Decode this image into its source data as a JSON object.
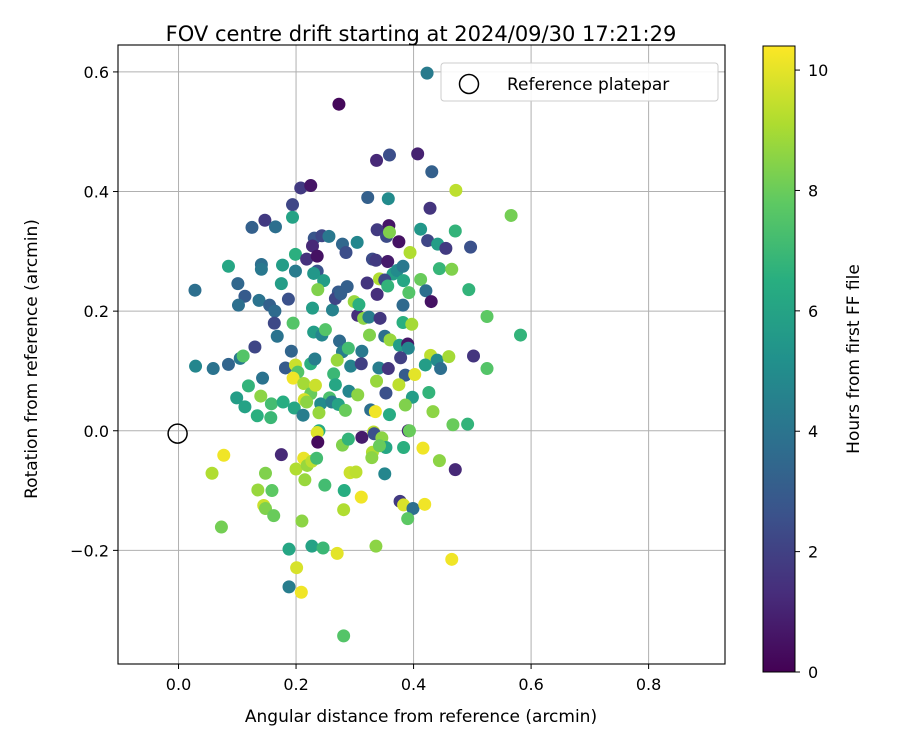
{
  "chart_data": {
    "type": "scatter",
    "title": "FOV centre drift starting at 2024/09/30 17:21:29",
    "xlabel": "Angular distance from reference (arcmin)",
    "ylabel": "Rotation from reference (arcmin)",
    "xlim": [
      -0.103,
      0.93
    ],
    "ylim": [
      -0.39,
      0.645
    ],
    "xticks": [
      0.0,
      0.2,
      0.4,
      0.6,
      0.8
    ],
    "xtick_labels": [
      "0.0",
      "0.2",
      "0.4",
      "0.6",
      "0.8"
    ],
    "yticks": [
      -0.2,
      0.0,
      0.2,
      0.4,
      0.6
    ],
    "ytick_labels": [
      "−0.2",
      "0.0",
      "0.2",
      "0.4",
      "0.6"
    ],
    "grid": true,
    "legend": {
      "position": "top-right",
      "entries": [
        "Reference platepar"
      ]
    },
    "reference": {
      "x": 0.0,
      "y": 0.0,
      "label": "Reference platepar"
    },
    "colorbar": {
      "label": "Hours from first FF file",
      "colormap": "viridis",
      "range": [
        0,
        10.4
      ],
      "ticks": [
        0,
        2,
        4,
        6,
        8,
        10
      ],
      "tick_labels": [
        "0",
        "2",
        "4",
        "6",
        "8",
        "10"
      ]
    },
    "points": [
      [
        0.423,
        0.598,
        4.3
      ],
      [
        0.273,
        0.546,
        0.2
      ],
      [
        0.337,
        0.452,
        1.2
      ],
      [
        0.359,
        0.461,
        2.5
      ],
      [
        0.407,
        0.463,
        1.0
      ],
      [
        0.431,
        0.433,
        3.2
      ],
      [
        0.208,
        0.406,
        1.8
      ],
      [
        0.225,
        0.41,
        0.6
      ],
      [
        0.194,
        0.378,
        2.2
      ],
      [
        0.472,
        0.402,
        9.4
      ],
      [
        0.428,
        0.372,
        1.6
      ],
      [
        0.566,
        0.36,
        8.2
      ],
      [
        0.147,
        0.352,
        1.8
      ],
      [
        0.194,
        0.357,
        6.0
      ],
      [
        0.322,
        0.39,
        3.2
      ],
      [
        0.357,
        0.388,
        5.0
      ],
      [
        0.358,
        0.343,
        0.6
      ],
      [
        0.412,
        0.337,
        5.5
      ],
      [
        0.471,
        0.334,
        6.8
      ],
      [
        0.125,
        0.34,
        3.2
      ],
      [
        0.165,
        0.341,
        3.8
      ],
      [
        0.231,
        0.322,
        2.8
      ],
      [
        0.244,
        0.326,
        2.2
      ],
      [
        0.228,
        0.309,
        1.2
      ],
      [
        0.256,
        0.325,
        4.2
      ],
      [
        0.279,
        0.312,
        3.5
      ],
      [
        0.285,
        0.298,
        2.5
      ],
      [
        0.304,
        0.315,
        4.8
      ],
      [
        0.338,
        0.336,
        1.8
      ],
      [
        0.354,
        0.325,
        2.4
      ],
      [
        0.359,
        0.332,
        8.4
      ],
      [
        0.375,
        0.316,
        0.5
      ],
      [
        0.424,
        0.318,
        2.2
      ],
      [
        0.441,
        0.312,
        5.8
      ],
      [
        0.455,
        0.305,
        1.8
      ],
      [
        0.497,
        0.307,
        2.6
      ],
      [
        0.085,
        0.275,
        6.2
      ],
      [
        0.141,
        0.278,
        3.8
      ],
      [
        0.141,
        0.27,
        4.2
      ],
      [
        0.177,
        0.277,
        5.8
      ],
      [
        0.199,
        0.295,
        6.6
      ],
      [
        0.218,
        0.287,
        1.5
      ],
      [
        0.236,
        0.292,
        0.5
      ],
      [
        0.199,
        0.267,
        4.3
      ],
      [
        0.236,
        0.267,
        2.7
      ],
      [
        0.33,
        0.287,
        2.4
      ],
      [
        0.336,
        0.285,
        1.8
      ],
      [
        0.356,
        0.283,
        0.8
      ],
      [
        0.365,
        0.262,
        5.8
      ],
      [
        0.372,
        0.268,
        5.0
      ],
      [
        0.382,
        0.275,
        4.2
      ],
      [
        0.394,
        0.298,
        9.2
      ],
      [
        0.444,
        0.271,
        6.9
      ],
      [
        0.465,
        0.27,
        8.4
      ],
      [
        0.101,
        0.246,
        3.5
      ],
      [
        0.113,
        0.225,
        3.0
      ],
      [
        0.137,
        0.218,
        4.0
      ],
      [
        0.155,
        0.21,
        3.2
      ],
      [
        0.164,
        0.2,
        3.6
      ],
      [
        0.175,
        0.246,
        5.8
      ],
      [
        0.187,
        0.22,
        2.6
      ],
      [
        0.23,
        0.263,
        5.5
      ],
      [
        0.247,
        0.251,
        5.8
      ],
      [
        0.272,
        0.232,
        3.0
      ],
      [
        0.287,
        0.241,
        3.2
      ],
      [
        0.321,
        0.247,
        1.6
      ],
      [
        0.342,
        0.254,
        9.2
      ],
      [
        0.351,
        0.252,
        2.3
      ],
      [
        0.356,
        0.242,
        6.8
      ],
      [
        0.383,
        0.251,
        6.2
      ],
      [
        0.392,
        0.231,
        7.6
      ],
      [
        0.412,
        0.253,
        8.0
      ],
      [
        0.421,
        0.234,
        3.8
      ],
      [
        0.43,
        0.216,
        0.5
      ],
      [
        0.494,
        0.236,
        6.8
      ],
      [
        0.028,
        0.235,
        3.8
      ],
      [
        0.102,
        0.21,
        3.8
      ],
      [
        0.163,
        0.18,
        2.3
      ],
      [
        0.195,
        0.18,
        7.6
      ],
      [
        0.228,
        0.205,
        5.8
      ],
      [
        0.237,
        0.236,
        8.4
      ],
      [
        0.262,
        0.202,
        4.6
      ],
      [
        0.267,
        0.221,
        2.2
      ],
      [
        0.276,
        0.229,
        3.2
      ],
      [
        0.299,
        0.216,
        8.8
      ],
      [
        0.305,
        0.193,
        1.4
      ],
      [
        0.307,
        0.211,
        6.6
      ],
      [
        0.315,
        0.188,
        8.6
      ],
      [
        0.324,
        0.19,
        4.4
      ],
      [
        0.338,
        0.228,
        1.4
      ],
      [
        0.343,
        0.188,
        1.7
      ],
      [
        0.382,
        0.181,
        6.6
      ],
      [
        0.382,
        0.21,
        3.6
      ],
      [
        0.397,
        0.178,
        9.0
      ],
      [
        0.525,
        0.191,
        7.8
      ],
      [
        0.582,
        0.16,
        6.8
      ],
      [
        0.13,
        0.14,
        2.2
      ],
      [
        0.168,
        0.158,
        4.0
      ],
      [
        0.192,
        0.133,
        3.4
      ],
      [
        0.23,
        0.165,
        5.8
      ],
      [
        0.244,
        0.16,
        4.8
      ],
      [
        0.25,
        0.169,
        7.6
      ],
      [
        0.274,
        0.15,
        3.6
      ],
      [
        0.279,
        0.132,
        4.4
      ],
      [
        0.289,
        0.138,
        7.2
      ],
      [
        0.312,
        0.133,
        4.2
      ],
      [
        0.325,
        0.16,
        8.4
      ],
      [
        0.351,
        0.158,
        3.8
      ],
      [
        0.36,
        0.152,
        8.8
      ],
      [
        0.376,
        0.143,
        5.8
      ],
      [
        0.39,
        0.145,
        0.7
      ],
      [
        0.391,
        0.138,
        4.8
      ],
      [
        0.429,
        0.126,
        9.4
      ],
      [
        0.44,
        0.118,
        5.0
      ],
      [
        0.46,
        0.124,
        9.0
      ],
      [
        0.502,
        0.125,
        1.6
      ],
      [
        0.029,
        0.108,
        4.8
      ],
      [
        0.059,
        0.104,
        4.0
      ],
      [
        0.085,
        0.111,
        3.4
      ],
      [
        0.105,
        0.121,
        4.2
      ],
      [
        0.11,
        0.125,
        7.6
      ],
      [
        0.143,
        0.088,
        4.0
      ],
      [
        0.182,
        0.105,
        3.0
      ],
      [
        0.199,
        0.11,
        9.6
      ],
      [
        0.203,
        0.098,
        7.6
      ],
      [
        0.225,
        0.112,
        6.6
      ],
      [
        0.232,
        0.12,
        4.4
      ],
      [
        0.264,
        0.095,
        7.0
      ],
      [
        0.27,
        0.118,
        8.8
      ],
      [
        0.293,
        0.108,
        4.6
      ],
      [
        0.311,
        0.112,
        2.0
      ],
      [
        0.341,
        0.105,
        4.4
      ],
      [
        0.357,
        0.104,
        1.6
      ],
      [
        0.378,
        0.122,
        2.0
      ],
      [
        0.386,
        0.093,
        3.0
      ],
      [
        0.402,
        0.094,
        10.0
      ],
      [
        0.42,
        0.11,
        5.8
      ],
      [
        0.446,
        0.104,
        3.8
      ],
      [
        0.525,
        0.104,
        7.6
      ],
      [
        0.119,
        0.075,
        6.8
      ],
      [
        0.14,
        0.058,
        8.6
      ],
      [
        0.158,
        0.045,
        7.2
      ],
      [
        0.178,
        0.048,
        6.5
      ],
      [
        0.195,
        0.088,
        10.2
      ],
      [
        0.213,
        0.079,
        9.0
      ],
      [
        0.225,
        0.062,
        8.0
      ],
      [
        0.233,
        0.076,
        9.6
      ],
      [
        0.257,
        0.055,
        7.4
      ],
      [
        0.267,
        0.077,
        6.2
      ],
      [
        0.29,
        0.066,
        4.8
      ],
      [
        0.305,
        0.06,
        8.6
      ],
      [
        0.337,
        0.083,
        8.8
      ],
      [
        0.353,
        0.063,
        2.6
      ],
      [
        0.375,
        0.077,
        9.4
      ],
      [
        0.398,
        0.056,
        5.8
      ],
      [
        0.426,
        0.064,
        6.8
      ],
      [
        0.099,
        0.055,
        5.8
      ],
      [
        0.113,
        0.04,
        6.0
      ],
      [
        0.134,
        0.025,
        6.6
      ],
      [
        0.157,
        0.022,
        7.0
      ],
      [
        0.197,
        0.038,
        6.2
      ],
      [
        0.214,
        0.052,
        9.8
      ],
      [
        0.218,
        0.048,
        8.6
      ],
      [
        0.242,
        0.045,
        5.0
      ],
      [
        0.261,
        0.048,
        4.4
      ],
      [
        0.272,
        0.044,
        6.0
      ],
      [
        0.284,
        0.034,
        8.0
      ],
      [
        0.327,
        0.035,
        3.8
      ],
      [
        0.335,
        0.032,
        10.2
      ],
      [
        0.359,
        0.027,
        6.4
      ],
      [
        0.386,
        0.043,
        8.4
      ],
      [
        0.433,
        0.032,
        8.6
      ],
      [
        0.467,
        0.01,
        8.0
      ],
      [
        0.492,
        0.011,
        6.8
      ],
      [
        0.212,
        0.026,
        4.4
      ],
      [
        0.239,
        0.03,
        8.8
      ],
      [
        0.239,
        0.0,
        6.4
      ],
      [
        0.236,
        -0.003,
        9.9
      ],
      [
        0.279,
        -0.024,
        8.4
      ],
      [
        0.289,
        -0.014,
        6.8
      ],
      [
        0.312,
        -0.011,
        0.8
      ],
      [
        0.332,
        -0.002,
        9.4
      ],
      [
        0.333,
        -0.005,
        2.6
      ],
      [
        0.346,
        -0.012,
        8.6
      ],
      [
        0.353,
        -0.028,
        6.2
      ],
      [
        0.383,
        -0.028,
        6.6
      ],
      [
        0.391,
        0.0,
        1.2
      ],
      [
        0.393,
        0.0,
        8.0
      ],
      [
        0.416,
        -0.029,
        10.2
      ],
      [
        0.077,
        -0.041,
        10.2
      ],
      [
        0.057,
        -0.071,
        9.2
      ],
      [
        0.175,
        -0.04,
        1.2
      ],
      [
        0.2,
        -0.064,
        9.2
      ],
      [
        0.213,
        -0.046,
        10.1
      ],
      [
        0.219,
        -0.058,
        8.8
      ],
      [
        0.227,
        -0.051,
        9.4
      ],
      [
        0.235,
        -0.046,
        7.2
      ],
      [
        0.237,
        -0.019,
        0.3
      ],
      [
        0.292,
        -0.07,
        9.6
      ],
      [
        0.302,
        -0.069,
        9.4
      ],
      [
        0.33,
        -0.036,
        9.2
      ],
      [
        0.329,
        -0.045,
        8.6
      ],
      [
        0.342,
        -0.025,
        8.0
      ],
      [
        0.351,
        -0.072,
        4.8
      ],
      [
        0.444,
        -0.05,
        8.6
      ],
      [
        0.471,
        -0.065,
        1.2
      ],
      [
        0.073,
        -0.161,
        8.2
      ],
      [
        0.135,
        -0.099,
        8.8
      ],
      [
        0.145,
        -0.125,
        9.6
      ],
      [
        0.148,
        -0.13,
        8.4
      ],
      [
        0.148,
        -0.071,
        8.4
      ],
      [
        0.159,
        -0.1,
        7.8
      ],
      [
        0.162,
        -0.142,
        8.0
      ],
      [
        0.215,
        -0.082,
        8.8
      ],
      [
        0.249,
        -0.091,
        7.2
      ],
      [
        0.282,
        -0.1,
        6.5
      ],
      [
        0.281,
        -0.132,
        9.2
      ],
      [
        0.311,
        -0.111,
        10.2
      ],
      [
        0.377,
        -0.118,
        1.8
      ],
      [
        0.383,
        -0.124,
        9.8
      ],
      [
        0.399,
        -0.13,
        3.8
      ],
      [
        0.39,
        -0.147,
        7.8
      ],
      [
        0.419,
        -0.123,
        10.2
      ],
      [
        0.188,
        -0.198,
        6.2
      ],
      [
        0.21,
        -0.151,
        8.6
      ],
      [
        0.227,
        -0.193,
        6.0
      ],
      [
        0.246,
        -0.196,
        7.0
      ],
      [
        0.27,
        -0.205,
        10.0
      ],
      [
        0.336,
        -0.193,
        8.6
      ],
      [
        0.465,
        -0.215,
        10.2
      ],
      [
        0.201,
        -0.229,
        9.8
      ],
      [
        0.188,
        -0.261,
        4.4
      ],
      [
        0.209,
        -0.27,
        10.2
      ],
      [
        0.281,
        -0.343,
        7.6
      ]
    ]
  }
}
